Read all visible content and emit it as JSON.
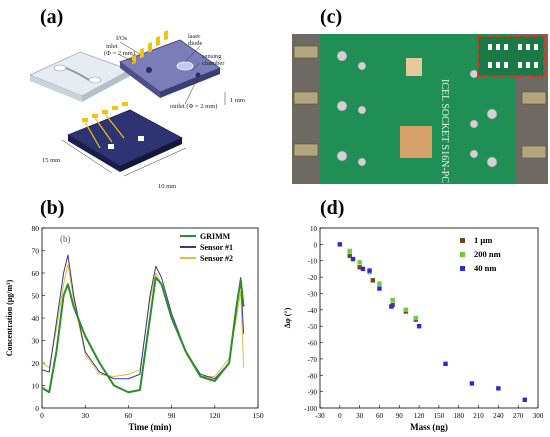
{
  "labels": {
    "a": "(a)",
    "b": "(b)",
    "c": "(c)",
    "d": "(d)"
  },
  "diagram": {
    "io_label": "I/Os",
    "inlet_label": "inlet",
    "inlet_dim": "(Φ = 2 mm)",
    "laser_label": "laser",
    "diode_label": "diode",
    "sensing_label": "sensing",
    "chamber_label": "chamber",
    "thickness_label": "1 mm",
    "outlet_label": "outlet (Φ = 2 mm)",
    "width_label": "15 mm",
    "length_label": "10 mm"
  },
  "pcb": {
    "silkscreen": "ICEL SOCKET S16N-PC",
    "colors": {
      "board": "#1f8f55",
      "pad": "#c8c8c8",
      "copper": "#d8a06a",
      "inset_border": "#e03020"
    }
  },
  "chart_data": [
    {
      "type": "line",
      "inner_label": "(b)",
      "xlabel": "Time (min)",
      "ylabel": "Concentration (μg/m³)",
      "xlim": [
        0,
        150
      ],
      "ylim": [
        0,
        80
      ],
      "xticks": [
        0,
        30,
        60,
        90,
        120,
        150
      ],
      "yticks": [
        0,
        10,
        20,
        30,
        40,
        50,
        60,
        70,
        80
      ],
      "legend_position": "top-right",
      "x": [
        0,
        5,
        10,
        15,
        18,
        22,
        30,
        40,
        50,
        60,
        68,
        75,
        79,
        83,
        90,
        100,
        110,
        120,
        130,
        135,
        138,
        140
      ],
      "series": [
        {
          "name": "GRIMM",
          "color": "#2e8b2e",
          "values": [
            9,
            7,
            25,
            50,
            55,
            45,
            32,
            20,
            10,
            7,
            8,
            40,
            58,
            55,
            40,
            25,
            14,
            12,
            20,
            45,
            57,
            45
          ]
        },
        {
          "name": "Sensor #1",
          "color": "#3a3a8a",
          "values": [
            17,
            16,
            38,
            60,
            68,
            50,
            25,
            16,
            13,
            13,
            15,
            50,
            63,
            58,
            42,
            25,
            15,
            13,
            20,
            43,
            58,
            33
          ]
        },
        {
          "name": "Sensor #2",
          "color": "#d8c040",
          "values": [
            20,
            18,
            35,
            55,
            64,
            48,
            24,
            15,
            14,
            15,
            17,
            48,
            60,
            55,
            40,
            24,
            14,
            14,
            22,
            40,
            52,
            18
          ]
        }
      ]
    },
    {
      "type": "scatter",
      "xlabel": "Mass (ng)",
      "ylabel": "Δφ (°)",
      "xlim": [
        -30,
        300
      ],
      "ylim": [
        -100,
        10
      ],
      "xticks": [
        -30,
        0,
        30,
        60,
        90,
        120,
        150,
        180,
        210,
        240,
        270,
        300
      ],
      "yticks": [
        10,
        0,
        -10,
        -20,
        -30,
        -40,
        -50,
        -60,
        -70,
        -80,
        -90,
        -100
      ],
      "legend_position": "top-right",
      "series": [
        {
          "name": "1 μm",
          "color": "#6b4c1e",
          "points": [
            [
              15,
              -7
            ],
            [
              30,
              -14
            ],
            [
              50,
              -22
            ],
            [
              80,
              -37
            ],
            [
              100,
              -41
            ],
            [
              115,
              -46
            ]
          ]
        },
        {
          "name": "200 nm",
          "color": "#6ccc3c",
          "points": [
            [
              15,
              -4
            ],
            [
              30,
              -11
            ],
            [
              45,
              -17
            ],
            [
              60,
              -24
            ],
            [
              80,
              -34
            ],
            [
              100,
              -40
            ],
            [
              115,
              -45
            ]
          ]
        },
        {
          "name": "40 nm",
          "color": "#2b2bd6",
          "points": [
            [
              0,
              0
            ],
            [
              20,
              -9
            ],
            [
              35,
              -15
            ],
            [
              45,
              -16
            ],
            [
              60,
              -27
            ],
            [
              78,
              -38
            ],
            [
              120,
              -50
            ],
            [
              160,
              -73
            ],
            [
              200,
              -85
            ],
            [
              240,
              -88
            ],
            [
              280,
              -95
            ]
          ]
        }
      ]
    }
  ]
}
